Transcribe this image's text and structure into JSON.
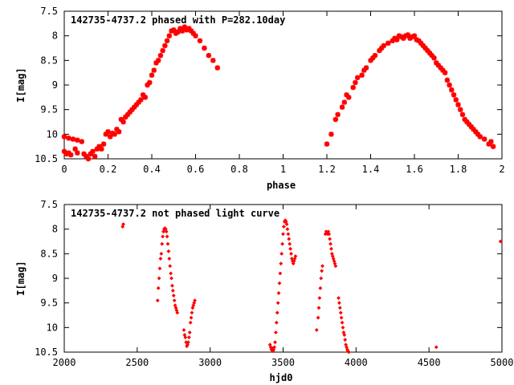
{
  "chart_data": [
    {
      "type": "scatter",
      "title": "142735-4737.2 phased with P=282.10day",
      "xlabel": "phase",
      "ylabel": "I[mag]",
      "xlim": [
        0,
        2
      ],
      "ylim": [
        10.5,
        7.5
      ],
      "y_inverted": true,
      "xticks": [
        "0",
        "0.2",
        "0.4",
        "0.6",
        "0.8",
        "1",
        "1.2",
        "1.4",
        "1.6",
        "1.8",
        "2"
      ],
      "yticks": [
        "7.5",
        "8",
        "8.5",
        "9",
        "9.5",
        "10",
        "10.5"
      ],
      "marker": "star",
      "color": "#ff0000",
      "series": [
        {
          "x": [
            0.0,
            0.01,
            0.02,
            0.03,
            0.05,
            0.06,
            0.0,
            0.02,
            0.04,
            0.06,
            0.08,
            0.1,
            0.12,
            0.13,
            0.15,
            0.16,
            0.17,
            0.18,
            0.19,
            0.2,
            0.21,
            0.22,
            0.23,
            0.24,
            0.25,
            0.26,
            0.27,
            0.28,
            0.29,
            0.3,
            0.31,
            0.32,
            0.33,
            0.34,
            0.35,
            0.36,
            0.37,
            0.38,
            0.39,
            0.4,
            0.41,
            0.42,
            0.43,
            0.44,
            0.45,
            0.46,
            0.47,
            0.48,
            0.49,
            0.5,
            0.51,
            0.52,
            0.53,
            0.54,
            0.55,
            0.56,
            0.57,
            0.58,
            0.59,
            0.6,
            0.62,
            0.64,
            0.66,
            0.68,
            0.7,
            0.09,
            0.14,
            0.11,
            1.2,
            1.22,
            1.24,
            1.25,
            1.27,
            1.28,
            1.29,
            1.3,
            1.32,
            1.33,
            1.34,
            1.36,
            1.37,
            1.38,
            1.4,
            1.41,
            1.42,
            1.44,
            1.45,
            1.46,
            1.48,
            1.5,
            1.51,
            1.52,
            1.53,
            1.54,
            1.55,
            1.56,
            1.57,
            1.58,
            1.59,
            1.6,
            1.61,
            1.62,
            1.63,
            1.64,
            1.65,
            1.66,
            1.67,
            1.68,
            1.69,
            1.7,
            1.71,
            1.72,
            1.73,
            1.74,
            1.75,
            1.76,
            1.77,
            1.78,
            1.79,
            1.8,
            1.81,
            1.82,
            1.83,
            1.84,
            1.85,
            1.86,
            1.87,
            1.88,
            1.89,
            1.9,
            1.92,
            1.94,
            1.95,
            1.96
          ],
          "y": [
            10.35,
            10.4,
            10.38,
            10.42,
            10.3,
            10.38,
            10.05,
            10.08,
            10.1,
            10.12,
            10.15,
            10.45,
            10.4,
            10.35,
            10.3,
            10.25,
            10.3,
            10.2,
            10.0,
            9.95,
            10.05,
            9.98,
            10.0,
            9.9,
            9.95,
            9.7,
            9.75,
            9.65,
            9.6,
            9.55,
            9.5,
            9.45,
            9.4,
            9.35,
            9.3,
            9.2,
            9.25,
            9.0,
            8.95,
            8.8,
            8.7,
            8.55,
            8.5,
            8.4,
            8.3,
            8.2,
            8.1,
            8.0,
            7.9,
            7.88,
            7.95,
            7.92,
            7.85,
            7.9,
            7.82,
            7.88,
            7.85,
            7.9,
            7.95,
            8.0,
            8.1,
            8.25,
            8.4,
            8.5,
            8.65,
            10.4,
            10.45,
            10.5,
            10.2,
            10.0,
            9.7,
            9.6,
            9.45,
            9.35,
            9.2,
            9.25,
            9.05,
            8.95,
            8.85,
            8.8,
            8.7,
            8.65,
            8.5,
            8.45,
            8.4,
            8.3,
            8.25,
            8.2,
            8.15,
            8.1,
            8.05,
            8.08,
            8.0,
            8.02,
            8.05,
            8.0,
            7.98,
            8.05,
            8.02,
            8.0,
            8.08,
            8.1,
            8.15,
            8.2,
            8.25,
            8.3,
            8.35,
            8.4,
            8.45,
            8.55,
            8.6,
            8.65,
            8.7,
            8.75,
            8.9,
            9.0,
            9.1,
            9.2,
            9.3,
            9.4,
            9.5,
            9.6,
            9.7,
            9.75,
            9.8,
            9.85,
            9.9,
            9.95,
            10.0,
            10.05,
            10.1,
            10.2,
            10.15,
            10.25
          ]
        }
      ]
    },
    {
      "type": "scatter",
      "title": "142735-4737.2 not phased light curve",
      "xlabel": "hjd0",
      "ylabel": "I[mag]",
      "xlim": [
        2000,
        5000
      ],
      "ylim": [
        10.5,
        7.5
      ],
      "y_inverted": true,
      "xticks": [
        "2000",
        "2500",
        "3000",
        "3500",
        "4000",
        "4500",
        "5000"
      ],
      "yticks": [
        "7.5",
        "8",
        "8.5",
        "9",
        "9.5",
        "10",
        "10.5"
      ],
      "marker": "diamond",
      "color": "#ff0000",
      "series": [
        {
          "x": [
            2400,
            2405,
            2640,
            2645,
            2650,
            2655,
            2660,
            2665,
            2670,
            2675,
            2680,
            2685,
            2690,
            2695,
            2700,
            2705,
            2710,
            2715,
            2720,
            2725,
            2730,
            2735,
            2740,
            2745,
            2750,
            2755,
            2760,
            2765,
            2770,
            2775,
            2820,
            2825,
            2830,
            2835,
            2840,
            2845,
            2850,
            2855,
            2860,
            2865,
            2870,
            2875,
            2880,
            2885,
            2890,
            2895,
            3410,
            3415,
            3420,
            3425,
            3430,
            3435,
            3440,
            3445,
            3450,
            3455,
            3460,
            3465,
            3470,
            3475,
            3480,
            3485,
            3490,
            3495,
            3500,
            3505,
            3510,
            3515,
            3520,
            3525,
            3530,
            3535,
            3540,
            3545,
            3550,
            3555,
            3560,
            3565,
            3570,
            3575,
            3580,
            3585,
            3730,
            3740,
            3745,
            3750,
            3755,
            3760,
            3765,
            3770,
            3790,
            3795,
            3800,
            3805,
            3810,
            3815,
            3820,
            3825,
            3830,
            3835,
            3840,
            3845,
            3850,
            3855,
            3860,
            3880,
            3885,
            3890,
            3895,
            3900,
            3905,
            3910,
            3915,
            3920,
            3925,
            3930,
            3935,
            3940,
            3945,
            3950,
            4550,
            4990
          ],
          "y": [
            7.95,
            7.9,
            9.45,
            9.2,
            9.0,
            8.8,
            8.6,
            8.5,
            8.3,
            8.15,
            8.05,
            8.0,
            7.98,
            8.0,
            8.05,
            8.15,
            8.3,
            8.45,
            8.6,
            8.75,
            8.9,
            9.0,
            9.15,
            9.25,
            9.35,
            9.45,
            9.55,
            9.6,
            9.65,
            9.7,
            10.05,
            10.15,
            10.2,
            10.3,
            10.38,
            10.35,
            10.3,
            10.2,
            10.1,
            9.9,
            9.8,
            9.7,
            9.6,
            9.55,
            9.5,
            9.45,
            10.35,
            10.4,
            10.45,
            10.42,
            10.48,
            10.45,
            10.4,
            10.3,
            10.1,
            9.9,
            9.7,
            9.5,
            9.3,
            9.1,
            8.9,
            8.7,
            8.5,
            8.3,
            8.1,
            7.95,
            7.85,
            7.82,
            7.85,
            7.9,
            8.0,
            8.1,
            8.2,
            8.3,
            8.4,
            8.5,
            8.6,
            8.65,
            8.7,
            8.65,
            8.6,
            8.55,
            10.05,
            9.8,
            9.6,
            9.4,
            9.2,
            9.0,
            8.85,
            8.75,
            8.1,
            8.05,
            8.08,
            8.1,
            8.05,
            8.1,
            8.2,
            8.3,
            8.4,
            8.5,
            8.55,
            8.6,
            8.65,
            8.7,
            8.75,
            9.4,
            9.5,
            9.6,
            9.7,
            9.8,
            9.9,
            10.0,
            10.1,
            10.15,
            10.25,
            10.35,
            10.4,
            10.45,
            10.48,
            10.5,
            10.4,
            8.25
          ]
        }
      ]
    }
  ]
}
